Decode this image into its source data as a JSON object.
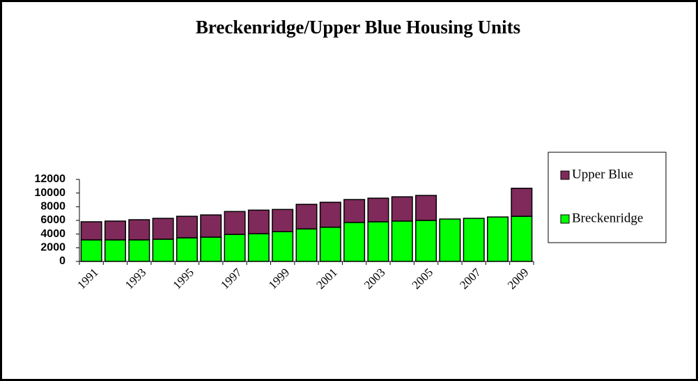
{
  "chart_data": {
    "type": "bar",
    "stacked": true,
    "title": "Breckenridge/Upper Blue Housing Units",
    "categories": [
      "1991",
      null,
      "1993",
      null,
      "1995",
      null,
      "1997",
      null,
      "1999",
      null,
      "2001",
      null,
      "2003",
      null,
      "2005",
      null,
      "2007",
      null,
      "2009"
    ],
    "series": [
      {
        "name": "Breckenridge",
        "color": "#00ff00",
        "values": [
          3150,
          3150,
          3150,
          3250,
          3450,
          3550,
          3950,
          4050,
          4350,
          4750,
          5000,
          5700,
          5800,
          5900,
          6000,
          6200,
          6300,
          6500,
          6600
        ]
      },
      {
        "name": "Upper Blue",
        "color": "#7f2a5a",
        "values": [
          2650,
          2750,
          2950,
          3050,
          3150,
          3250,
          3350,
          3450,
          3250,
          3600,
          3650,
          3350,
          3450,
          3550,
          3650,
          null,
          null,
          null,
          4100
        ]
      }
    ],
    "ylim": [
      0,
      12000
    ],
    "yticks": [
      0,
      2000,
      4000,
      6000,
      8000,
      10000,
      12000
    ],
    "grid": false,
    "legend": "right"
  }
}
